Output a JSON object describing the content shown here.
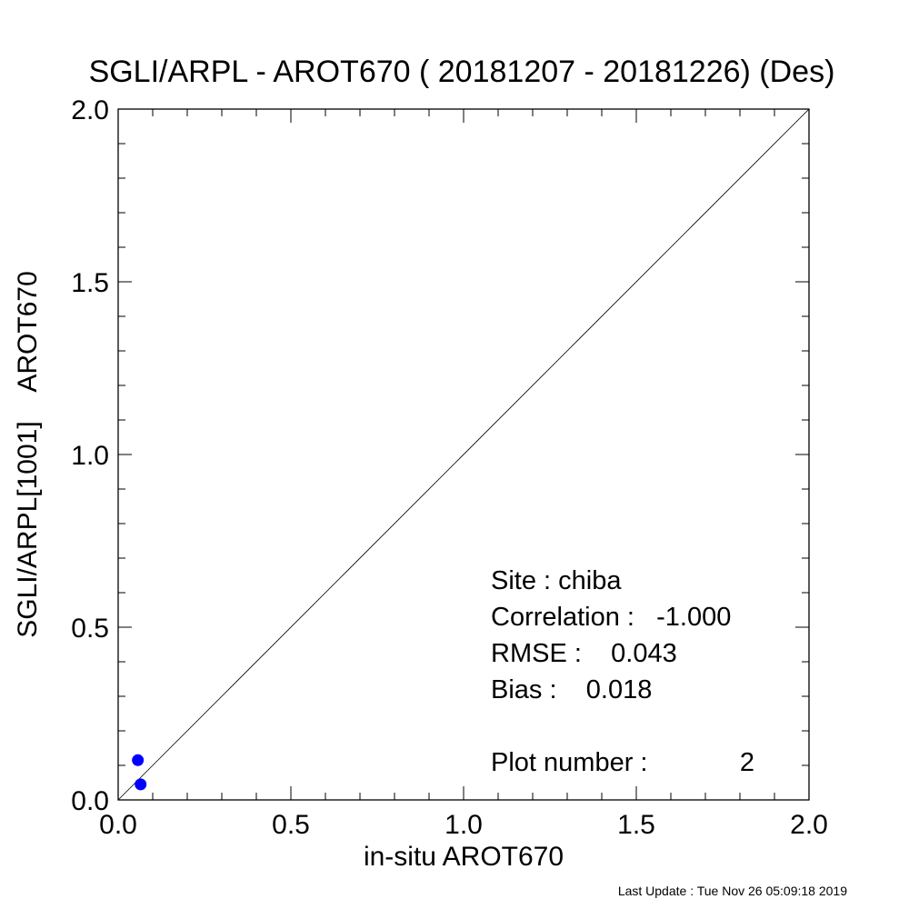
{
  "chart_data": {
    "type": "scatter",
    "title": "SGLI/ARPL - AROT670 ( 20181207 - 20181226) (Des)",
    "xlabel": "in-situ AROT670",
    "ylabel": "SGLI/ARPL[1001]    AROT670",
    "xlim": [
      0.0,
      2.0
    ],
    "ylim": [
      0.0,
      2.0
    ],
    "x_ticks": [
      "0.0",
      "0.5",
      "1.0",
      "1.5",
      "2.0"
    ],
    "y_ticks": [
      "0.0",
      "0.5",
      "1.0",
      "1.5",
      "2.0"
    ],
    "reference_line": "1:1",
    "grid": false,
    "point_color": "#0000ff",
    "series": [
      {
        "x": [
          0.057,
          0.065
        ],
        "y": [
          0.115,
          0.045
        ]
      }
    ],
    "stats": {
      "site": "Site : chiba",
      "correlation": "Correlation :   -1.000",
      "rmse": "RMSE :    0.043",
      "bias": "Bias :    0.018",
      "plot_number_label": "Plot number :",
      "plot_number_value": "2"
    }
  },
  "footer": "Last Update : Tue Nov 26 05:09:18 2019"
}
